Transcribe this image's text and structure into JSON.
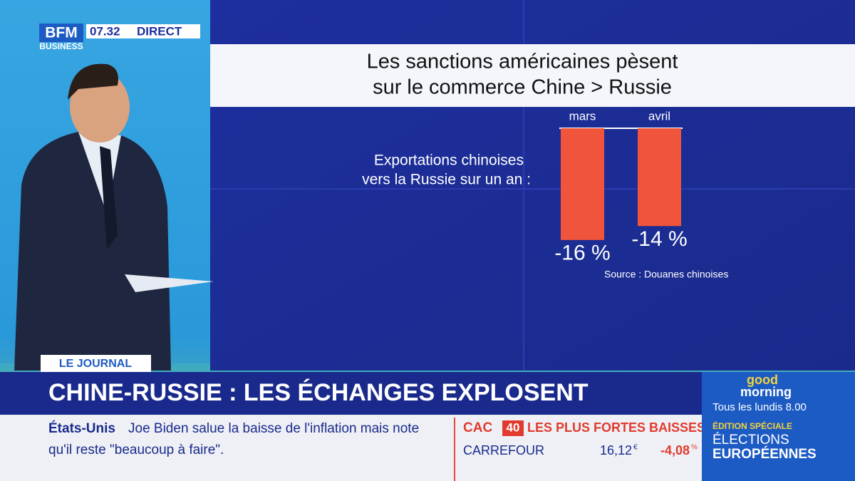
{
  "chart_data": {
    "type": "bar",
    "title": [
      "Les sanctions américaines pèsent",
      "sur le commerce Chine > Russie"
    ],
    "subtitle": [
      "Exportations chinoises",
      "vers la Russie sur un an :"
    ],
    "categories": [
      "mars",
      "avril"
    ],
    "values": [
      -16,
      -14
    ],
    "value_labels": [
      "-16 %",
      "-14 %"
    ],
    "color": "#f0553b",
    "source": "Source : Douanes chinoises"
  },
  "header": {
    "logo": "BFM",
    "logo_sub": "BUSINESS",
    "time": "07.32",
    "live": "DIRECT"
  },
  "lower_third": {
    "tag": "LE JOURNAL",
    "headline": "CHINE-RUSSIE : LES ÉCHANGES EXPLOSENT"
  },
  "ticker": {
    "topic": "États-Unis",
    "text": [
      "Joe Biden salue la baisse de l'inflation mais note",
      "qu'il reste \"beaucoup à faire\"."
    ]
  },
  "market": {
    "index": "CAC",
    "index_num": "40",
    "heading": "LES PLUS FORTES BAISSES",
    "rows": [
      [
        "CARREFOUR",
        "16,12",
        "€",
        "-4,08",
        "%"
      ]
    ]
  },
  "promo": {
    "brand": [
      "good",
      "morning"
    ],
    "schedule": "Tous les lundis 8.00",
    "edition": "ÉDITION SPÉCIALE",
    "lines": [
      "ÉLECTIONS",
      "EUROPÉENNES"
    ]
  }
}
